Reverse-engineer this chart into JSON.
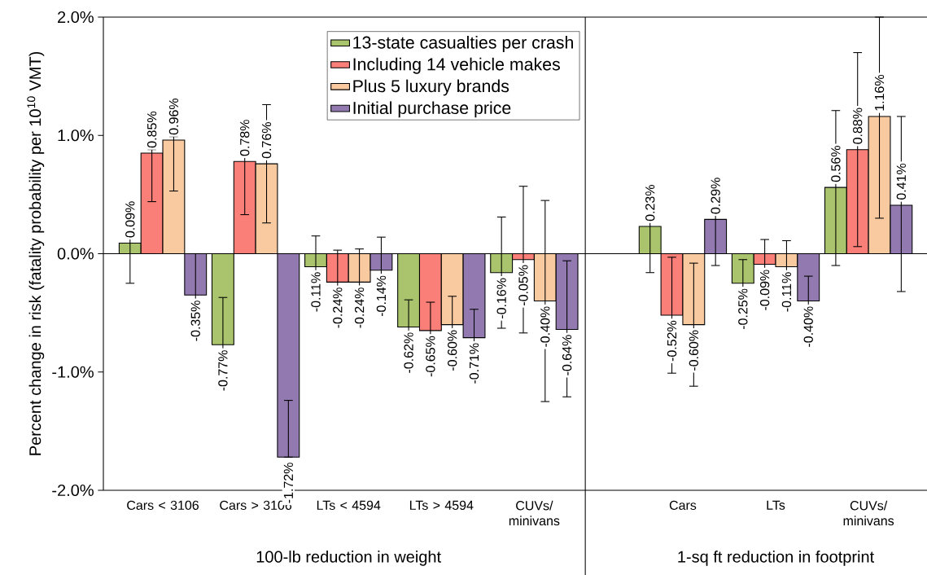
{
  "chart_data": {
    "type": "bar",
    "ylabel": "Percent change in risk (fatality probability per 10$^{10}$ VMT)",
    "categories": [
      "Cars < 3106",
      "Cars > 3106",
      "LTs < 4594",
      "LTs > 4594",
      "CUVs/ minivans",
      "Cars",
      "LTs",
      "CUVs/ minivans"
    ],
    "series": [
      {
        "name": "13-state casualties per crash",
        "color": "#a9c46c",
        "values": [
          0.09,
          -0.77,
          -0.11,
          -0.62,
          -0.16,
          0.23,
          -0.25,
          0.56
        ],
        "value_labels": [
          "0.09%",
          "-0.77%",
          "-0.11%",
          "-0.62%",
          "-0.16%",
          "0.23%",
          "-0.25%",
          "0.56%"
        ],
        "errors": [
          [
            -0.25,
            0.13
          ],
          [
            -0.82,
            -0.37
          ],
          [
            -0.37,
            0.15
          ],
          [
            -0.85,
            -0.39
          ],
          [
            -0.63,
            0.31
          ],
          [
            -0.16,
            0.27
          ],
          [
            -0.45,
            -0.05
          ],
          [
            -0.1,
            1.21
          ]
        ]
      },
      {
        "name": "Including 14 vehicle makes",
        "color": "#f97f78",
        "values": [
          0.85,
          0.78,
          -0.24,
          -0.65,
          -0.05,
          -0.52,
          -0.09,
          0.88
        ],
        "value_labels": [
          "0.85%",
          "0.78%",
          "-0.24%",
          "-0.65%",
          "-0.05%",
          "-0.52%",
          "-0.09%",
          "0.88%"
        ],
        "errors": [
          [
            0.44,
            0.88
          ],
          [
            0.33,
            0.83
          ],
          [
            -0.51,
            0.03
          ],
          [
            -0.89,
            -0.41
          ],
          [
            -0.67,
            0.57
          ],
          [
            -1.01,
            -0.03
          ],
          [
            -0.3,
            0.12
          ],
          [
            0.06,
            1.7
          ]
        ]
      },
      {
        "name": "Plus 5 luxury brands",
        "color": "#f9c9a0",
        "values": [
          0.96,
          0.76,
          -0.24,
          -0.6,
          -0.4,
          -0.6,
          -0.11,
          1.16
        ],
        "value_labels": [
          "0.96%",
          "0.76%",
          "-0.24%",
          "-0.60%",
          "-0.40%",
          "-0.60%",
          "-0.11%",
          "1.16%"
        ],
        "errors": [
          [
            0.53,
            0.99
          ],
          [
            0.26,
            1.26
          ],
          [
            -0.52,
            0.04
          ],
          [
            -0.84,
            -0.36
          ],
          [
            -1.25,
            0.45
          ],
          [
            -1.12,
            -0.08
          ],
          [
            -0.33,
            0.11
          ],
          [
            0.3,
            2.0
          ]
        ]
      },
      {
        "name": "Initial purchase price",
        "color": "#9279b0",
        "values": [
          -0.35,
          -1.72,
          -0.14,
          -0.71,
          -0.64,
          0.29,
          -0.4,
          0.41
        ],
        "value_labels": [
          "-0.35%",
          "-1.72%",
          "-0.14%",
          "-0.71%",
          "-0.64%",
          "0.29%",
          "-0.40%",
          "0.41%"
        ],
        "errors": [
          [
            -0.4,
            0.0
          ],
          [
            -1.72,
            -1.24
          ],
          [
            -0.42,
            0.14
          ],
          [
            -0.95,
            -0.47
          ],
          [
            -1.21,
            -0.06
          ],
          [
            -0.1,
            0.33
          ],
          [
            -0.61,
            -0.19
          ],
          [
            -0.32,
            1.16
          ]
        ]
      }
    ],
    "ylim": [
      -2.0,
      2.0
    ],
    "yticks": [
      {
        "value": -2.0,
        "label": "-2.0%"
      },
      {
        "value": -1.0,
        "label": "-1.0%"
      },
      {
        "value": 0.0,
        "label": "0.0%"
      },
      {
        "value": 1.0,
        "label": "1.0%"
      },
      {
        "value": 2.0,
        "label": "2.0%"
      }
    ],
    "legend": "top",
    "annotations": [
      "100-lb reduction in weight",
      "1-sq ft reduction in footprint"
    ]
  }
}
